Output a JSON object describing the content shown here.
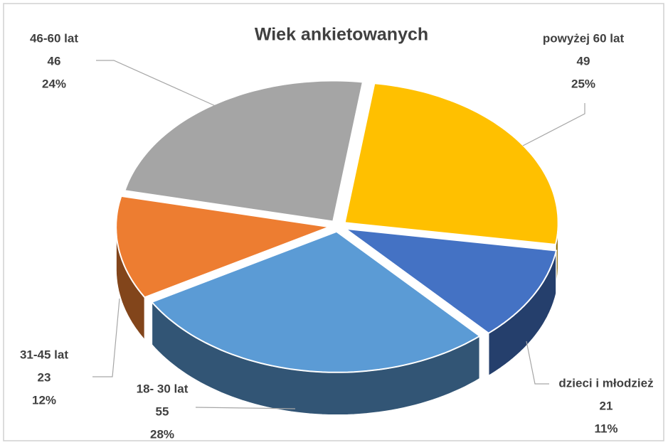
{
  "chart_data": {
    "type": "pie3d",
    "title": "Wiek ankietowanych",
    "categories": [
      "powyżej 60 lat",
      "dzieci i młodzież",
      "18- 30 lat",
      "31-45 lat",
      "46-60 lat"
    ],
    "values": [
      49,
      21,
      55,
      23,
      46
    ],
    "percent_labels": [
      "25%",
      "11%",
      "28%",
      "12%",
      "24%"
    ],
    "colors": [
      "#ffc000",
      "#4472c4",
      "#5b9bd5",
      "#ed7d31",
      "#a5a5a5"
    ]
  }
}
